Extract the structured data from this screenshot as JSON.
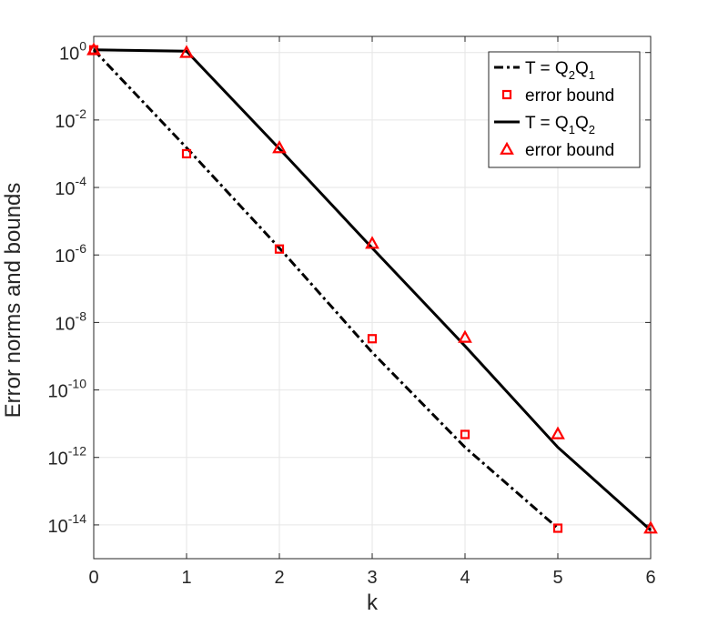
{
  "chart_data": {
    "type": "line",
    "title": "",
    "xlabel": "k",
    "ylabel": "Error norms and bounds",
    "xlim": [
      0,
      6
    ],
    "ylim": [
      1e-15,
      3.0
    ],
    "yscale": "log",
    "grid": true,
    "legend_position": "top-right",
    "x_ticks": [
      0,
      1,
      2,
      3,
      4,
      5,
      6
    ],
    "y_ticks": [
      {
        "base": "10",
        "exp": "0",
        "value": 1
      },
      {
        "base": "10",
        "exp": "-2",
        "value": 0.01
      },
      {
        "base": "10",
        "exp": "-4",
        "value": 0.0001
      },
      {
        "base": "10",
        "exp": "-6",
        "value": 1e-06
      },
      {
        "base": "10",
        "exp": "-8",
        "value": 1e-08
      },
      {
        "base": "10",
        "exp": "-10",
        "value": 1e-10
      },
      {
        "base": "10",
        "exp": "-12",
        "value": 1e-12
      },
      {
        "base": "10",
        "exp": "-14",
        "value": 1e-14
      }
    ],
    "series": [
      {
        "label_parts": [
          "T = Q",
          "2",
          "Q",
          "1"
        ],
        "style": "dash-dot",
        "color": "#000000",
        "x": [
          0,
          1,
          2,
          3,
          4,
          5
        ],
        "y": [
          1.2,
          0.0015,
          1.6e-06,
          1.3e-09,
          2e-12,
          8e-15
        ]
      },
      {
        "name": "error bound",
        "style": "square-marker",
        "color": "#ff0000",
        "x": [
          0,
          1,
          2,
          3,
          4,
          5
        ],
        "y": [
          1.2,
          0.001,
          1.5e-06,
          3.3e-09,
          4.8e-12,
          8e-15
        ]
      },
      {
        "label_parts": [
          "T = Q",
          "1",
          "Q",
          "2"
        ],
        "style": "solid",
        "color": "#000000",
        "x": [
          0,
          1,
          2,
          3,
          4,
          5,
          6
        ],
        "y": [
          1.2,
          1.1,
          0.0014,
          1.6e-06,
          2e-09,
          2e-12,
          7e-15
        ]
      },
      {
        "name": "error bound",
        "style": "triangle-marker",
        "color": "#ff0000",
        "x": [
          0,
          1,
          2,
          3,
          4,
          5,
          6
        ],
        "y": [
          1.2,
          1.0,
          0.0015,
          2.2e-06,
          3.6e-09,
          5e-12,
          8e-15
        ]
      }
    ]
  }
}
